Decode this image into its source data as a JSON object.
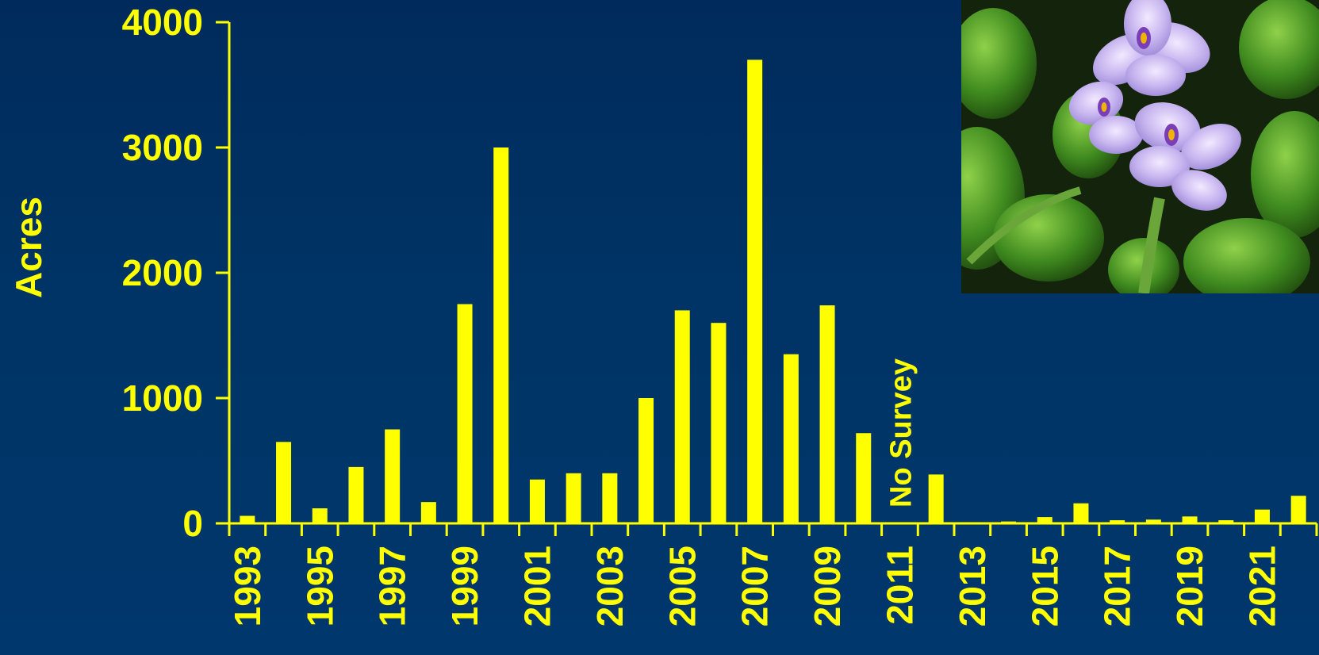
{
  "chart_data": {
    "type": "bar",
    "ylabel": "Acres",
    "ylim": [
      0,
      4000
    ],
    "yticks": [
      0,
      1000,
      2000,
      3000,
      4000
    ],
    "categories": [
      "1993",
      "1994",
      "1995",
      "1996",
      "1997",
      "1998",
      "1999",
      "2000",
      "2001",
      "2002",
      "2003",
      "2004",
      "2005",
      "2006",
      "2007",
      "2008",
      "2009",
      "2010",
      "2011",
      "2012",
      "2013",
      "2014",
      "2015",
      "2016",
      "2017",
      "2018",
      "2019",
      "2020",
      "2021",
      "2022"
    ],
    "tick_labels_shown": [
      "1993",
      "1995",
      "1997",
      "1999",
      "2001",
      "2003",
      "2005",
      "2007",
      "2009",
      "2011",
      "2013",
      "2015",
      "2017",
      "2019",
      "2021"
    ],
    "values": [
      60,
      650,
      120,
      450,
      750,
      170,
      1750,
      3000,
      350,
      400,
      400,
      1000,
      1700,
      1600,
      3700,
      1350,
      1740,
      720,
      null,
      390,
      5,
      15,
      50,
      160,
      25,
      30,
      55,
      25,
      110,
      220
    ],
    "annotations": [
      {
        "category": "2011",
        "text": "No Survey"
      }
    ],
    "bar_color": "#ffff00",
    "text_color": "#ffff00",
    "background_color": "#003366",
    "grid": false
  },
  "photo": {
    "subject": "water-hyacinth-flower"
  }
}
